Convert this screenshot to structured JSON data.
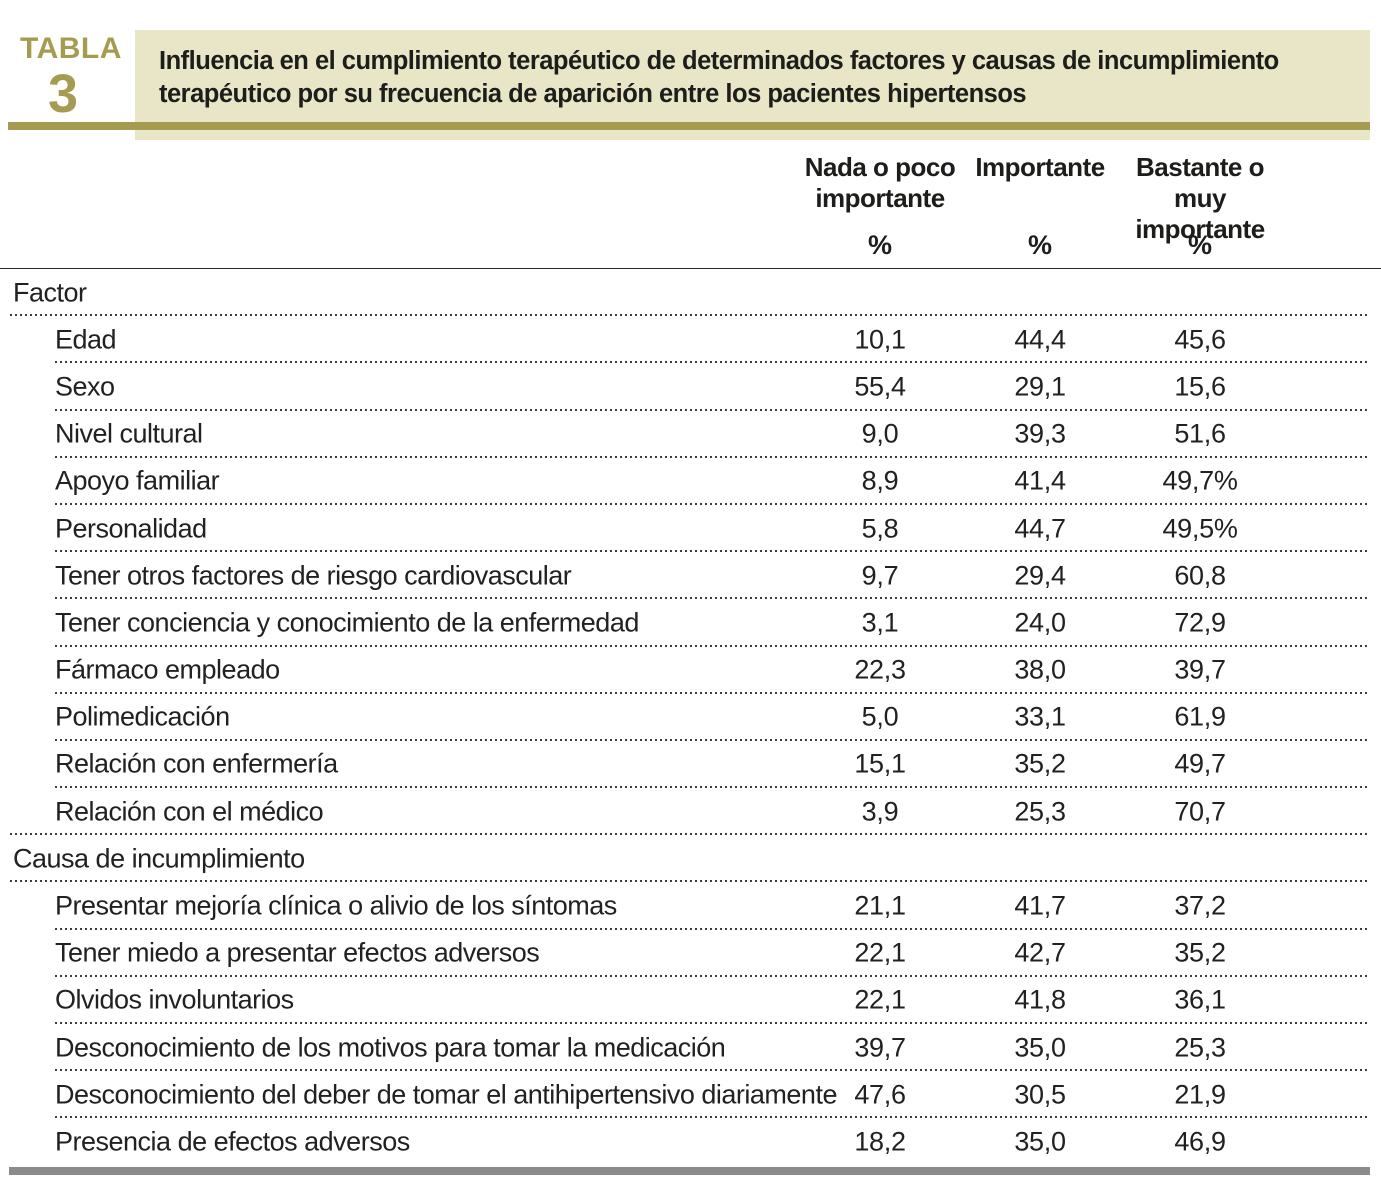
{
  "figure": {
    "label_word": "TABLA",
    "label_number": "3",
    "title_lines": [
      "Influencia en el cumplimiento terapéutico de determinados factores y causas de incumplimiento",
      "terapéutico por su frecuencia de aparición entre los pacientes hipertensos"
    ]
  },
  "columns": [
    {
      "header": "Nada o poco\nimportante",
      "unit": "%"
    },
    {
      "header": "Importante",
      "unit": "%"
    },
    {
      "header": "Bastante o\nmuy importante",
      "unit": "%"
    }
  ],
  "colors": {
    "accent_olive": "#a59c52",
    "band_cream": "#e9e5c7",
    "text_dark": "#1d1d1b",
    "bottom_bar_gray": "#8b8b8b"
  },
  "table": {
    "sections": [
      {
        "header": "Factor",
        "rows": [
          {
            "label": "Edad",
            "values": [
              "10,1",
              "44,4",
              "45,6"
            ]
          },
          {
            "label": "Sexo",
            "values": [
              "55,4",
              "29,1",
              "15,6"
            ]
          },
          {
            "label": "Nivel cultural",
            "values": [
              "9,0",
              "39,3",
              "51,6"
            ]
          },
          {
            "label": "Apoyo familiar",
            "values": [
              "8,9",
              "41,4",
              "49,7%"
            ]
          },
          {
            "label": "Personalidad",
            "values": [
              "5,8",
              "44,7",
              "49,5%"
            ]
          },
          {
            "label": "Tener otros factores de riesgo cardiovascular",
            "values": [
              "9,7",
              "29,4",
              "60,8"
            ]
          },
          {
            "label": "Tener conciencia y conocimiento de la enfermedad",
            "values": [
              "3,1",
              "24,0",
              "72,9"
            ]
          },
          {
            "label": "Fármaco empleado",
            "values": [
              "22,3",
              "38,0",
              "39,7"
            ]
          },
          {
            "label": "Polimedicación",
            "values": [
              "5,0",
              "33,1",
              "61,9"
            ]
          },
          {
            "label": "Relación con enfermería",
            "values": [
              "15,1",
              "35,2",
              "49,7"
            ]
          },
          {
            "label": "Relación con el médico",
            "values": [
              "3,9",
              "25,3",
              "70,7"
            ]
          }
        ]
      },
      {
        "header": "Causa de incumplimiento",
        "rows": [
          {
            "label": "Presentar mejoría clínica o alivio de los síntomas",
            "values": [
              "21,1",
              "41,7",
              "37,2"
            ]
          },
          {
            "label": "Tener miedo a presentar efectos adversos",
            "values": [
              "22,1",
              "42,7",
              "35,2"
            ]
          },
          {
            "label": "Olvidos involuntarios",
            "values": [
              "22,1",
              "41,8",
              "36,1"
            ]
          },
          {
            "label": "Desconocimiento de los motivos para tomar la medicación",
            "values": [
              "39,7",
              "35,0",
              "25,3"
            ]
          },
          {
            "label": "Desconocimiento del deber de tomar el antihipertensivo diariamente",
            "values": [
              "47,6",
              "30,5",
              "21,9"
            ]
          },
          {
            "label": "Presencia de efectos adversos",
            "values": [
              "18,2",
              "35,0",
              "46,9"
            ]
          }
        ]
      }
    ]
  }
}
